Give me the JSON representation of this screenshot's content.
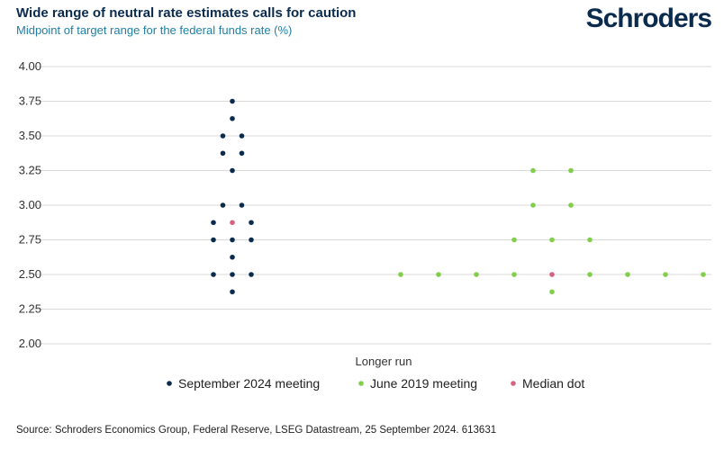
{
  "title": "Wide range of neutral rate estimates calls for caution",
  "subtitle": "Midpoint of target range for the federal funds rate (%)",
  "brand": "Schroders",
  "source": "Source: Schroders Economics Group, Federal Reserve, LSEG Datastream, 25 September 2024. 613631",
  "colors": {
    "navy": "#0b2b4e",
    "green": "#7fcf4a",
    "median": "#d9607f",
    "grid": "#d9d9d9"
  },
  "chart_data": {
    "type": "scatter",
    "category": "Longer run",
    "ylim": [
      2.0,
      4.0
    ],
    "yticks": [
      "4.00",
      "3.75",
      "3.50",
      "3.25",
      "3.00",
      "2.75",
      "2.50",
      "2.25",
      "2.00"
    ],
    "legend_position": "bottom",
    "series": [
      {
        "name": "September 2024 meeting",
        "color": "#0b2b4e",
        "values": [
          3.75,
          3.625,
          3.5,
          3.5,
          3.375,
          3.375,
          3.25,
          3.0,
          3.0,
          2.875,
          2.875,
          2.75,
          2.75,
          2.75,
          2.625,
          2.5,
          2.5,
          2.5,
          2.375
        ]
      },
      {
        "name": "June 2019 meeting",
        "color": "#7fcf4a",
        "values": [
          3.25,
          3.25,
          3.0,
          3.0,
          2.75,
          2.75,
          2.75,
          2.5,
          2.5,
          2.5,
          2.5,
          2.5,
          2.5,
          2.5,
          2.5,
          2.375
        ]
      },
      {
        "name": "Median dot",
        "color": "#d9607f",
        "values": [
          2.875,
          2.5
        ]
      }
    ]
  }
}
